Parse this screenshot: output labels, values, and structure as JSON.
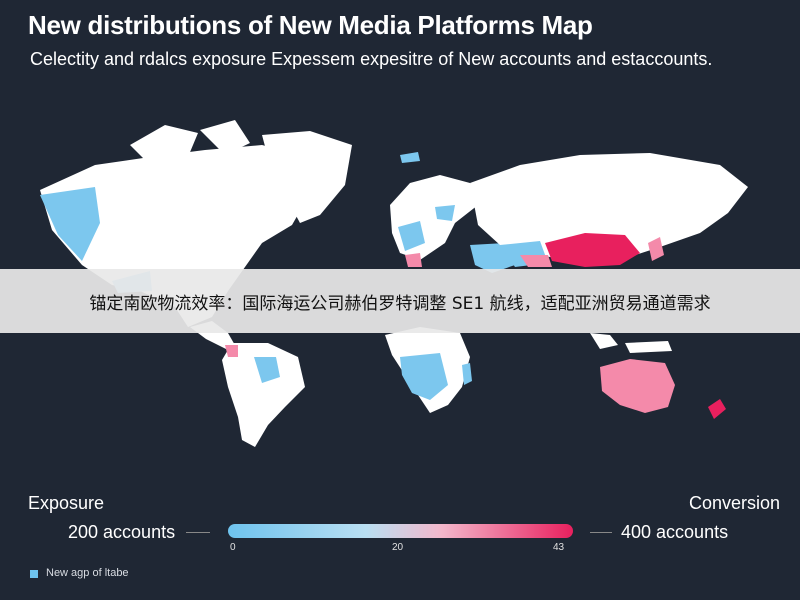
{
  "header": {
    "title": "New distributions of New Media Platforms Map",
    "subtitle": "Celectity and rdalcs exposure Expessem expesitre of New accounts and estaccounts."
  },
  "overlay": {
    "text": "锚定南欧物流效率：国际海运公司赫伯罗特调整 SE1 航线，适配亚洲贸易通道需求"
  },
  "legend": {
    "left_title": "Exposure",
    "right_title": "Conversion",
    "left_value": "200 accounts",
    "right_value": "400 accounts",
    "ticks": [
      "0",
      "20",
      "43"
    ],
    "gradient_colors": [
      "#6ec3ee",
      "#b9dff2",
      "#f3b7cb",
      "#e8205e"
    ]
  },
  "footnote": {
    "text": "New agp of ltabe",
    "swatch_color": "#6ec3ee"
  },
  "colors": {
    "background": "#1f2734",
    "land": "#ffffff",
    "exposure": "#7cc7ee",
    "conversion_light": "#f48aaa",
    "conversion_strong": "#e8205e"
  }
}
